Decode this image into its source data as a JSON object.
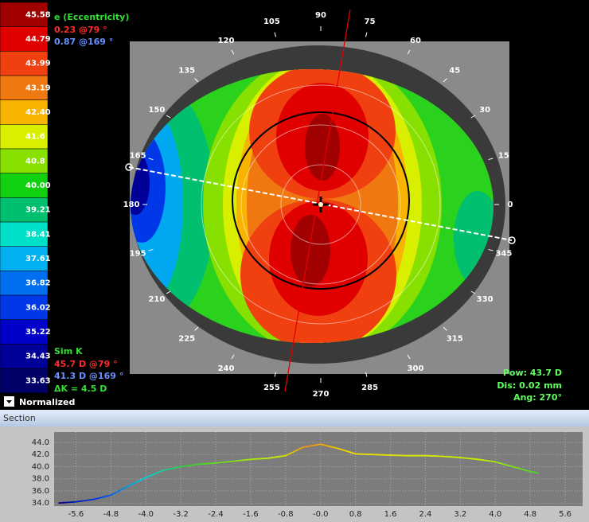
{
  "scale": {
    "values": [
      45.58,
      44.79,
      43.99,
      43.19,
      {
        "value": 42.4,
        "label": "42.40"
      },
      41.6,
      40.8,
      {
        "value": 40,
        "label": "40.00"
      },
      39.21,
      38.41,
      37.61,
      36.82,
      36.02,
      35.22,
      34.43,
      33.63
    ],
    "colors": [
      "#a00000",
      "#e00000",
      "#f04010",
      "#f07810",
      "#f8b400",
      "#d8f000",
      "#88e000",
      "#10d010",
      "#00c070",
      "#00e0c8",
      "#00b0f0",
      "#0070f0",
      "#0038e8",
      "#0000c8",
      "#000098",
      "#000068"
    ]
  },
  "eccentricity": {
    "title": "e (Eccentricity)",
    "lines": [
      {
        "text": "0.23 @79 °",
        "color": "#ff2a2a"
      },
      {
        "text": "0.87 @169 °",
        "color": "#6a90ff"
      }
    ]
  },
  "sim_k": {
    "title": "Sim K",
    "lines": [
      {
        "text": "45.7 D @79 °",
        "color": "#ff2a2a"
      },
      {
        "text": "41.3 D @169 °",
        "color": "#6a90ff"
      },
      {
        "text": "ΔK = 4.5 D",
        "color": "#30e030"
      }
    ]
  },
  "normalized": "Normalized",
  "measurement": [
    "Pow: 43.7 D",
    "Dis: 0.02 mm",
    "Ang: 270°"
  ],
  "angle_labels": [
    0,
    15,
    30,
    45,
    60,
    75,
    90,
    105,
    120,
    135,
    150,
    165,
    180,
    195,
    210,
    225,
    240,
    255,
    270,
    285,
    300,
    315,
    330,
    345
  ],
  "section": "Section",
  "chart_data": {
    "type": "line",
    "x": [
      -6.0,
      -5.6,
      -5.2,
      -4.8,
      -4.4,
      -4.0,
      -3.6,
      -3.2,
      -2.8,
      -2.4,
      -2.0,
      -1.6,
      -1.2,
      -0.8,
      -0.4,
      0.0,
      0.4,
      0.8,
      1.2,
      1.6,
      2.0,
      2.4,
      2.8,
      3.2,
      3.6,
      4.0,
      4.4,
      4.8,
      5.0
    ],
    "values": [
      34.0,
      34.2,
      34.6,
      35.3,
      36.8,
      38.2,
      39.4,
      40.0,
      40.4,
      40.6,
      40.9,
      41.2,
      41.4,
      41.8,
      43.2,
      43.7,
      43.0,
      42.1,
      42.0,
      41.9,
      41.8,
      41.8,
      41.7,
      41.5,
      41.2,
      40.8,
      40.0,
      39.2,
      38.9
    ],
    "xlim": [
      -6.1,
      6.0
    ],
    "ylim": [
      33.5,
      45.7
    ],
    "xticks": [
      -5.6,
      -4.8,
      {
        "value": -4,
        "label": "-4.0"
      },
      -3.2,
      -2.4,
      -1.6,
      -0.8,
      {
        "value": 0,
        "label": "-0.0"
      },
      0.8,
      1.6,
      2.4,
      3.2,
      {
        "value": 4,
        "label": "4.0"
      },
      4.8,
      5.6
    ],
    "yticks": [
      {
        "value": 34,
        "label": "34.0"
      },
      {
        "value": 36,
        "label": "36.0"
      },
      {
        "value": 38,
        "label": "38.0"
      },
      {
        "value": 40,
        "label": "40.0"
      },
      {
        "value": 42,
        "label": "42.0"
      },
      {
        "value": 44,
        "label": "44.0"
      }
    ],
    "grid": true
  }
}
